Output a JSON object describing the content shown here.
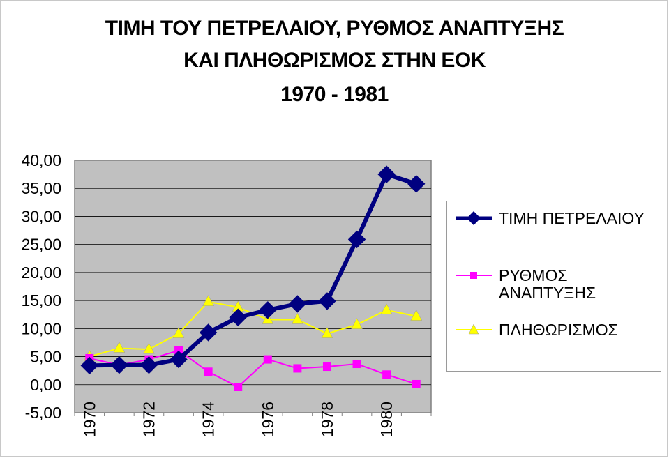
{
  "chart_data": {
    "type": "line",
    "title_lines": [
      "ΤΙΜΗ ΤΟΥ ΠΕΤΡΕΛΑΙΟΥ, ΡΥΘΜΟΣ ΑΝΑΠΤΥΞΗΣ",
      "ΚΑΙ ΠΛΗΘΩΡΙΣΜΟΣ ΣΤΗΝ ΕΟΚ",
      "1970 - 1981"
    ],
    "x": [
      1970,
      1971,
      1972,
      1973,
      1974,
      1975,
      1976,
      1977,
      1978,
      1979,
      1980,
      1981
    ],
    "x_tick_labels": [
      "1970",
      "1972",
      "1974",
      "1976",
      "1978",
      "1980"
    ],
    "x_tick_values": [
      1970,
      1972,
      1974,
      1976,
      1978,
      1980
    ],
    "y_tick_labels": [
      "40,00",
      "35,00",
      "30,00",
      "25,00",
      "20,00",
      "15,00",
      "10,00",
      "5,00",
      "0,00",
      "-5,00"
    ],
    "y_tick_values": [
      40,
      35,
      30,
      25,
      20,
      15,
      10,
      5,
      0,
      -5
    ],
    "ylim": [
      -5,
      40
    ],
    "grid": true,
    "plot_background": "#c0c0c0",
    "legend_position": "right",
    "series": [
      {
        "name": "ΤΙΜΗ ΠΕΤΡΕΛΑΙΟΥ",
        "color": "#000080",
        "marker": "diamond",
        "values": [
          3.4,
          3.5,
          3.5,
          4.5,
          9.3,
          12.0,
          13.3,
          14.4,
          14.9,
          25.9,
          37.5,
          35.8
        ]
      },
      {
        "name": "ΡΥΘΜΟΣ ΑΝΑΠΤΥΞΗΣ",
        "color": "#ff00ff",
        "marker": "square",
        "values": [
          4.7,
          3.5,
          4.5,
          6.1,
          2.3,
          -0.4,
          4.5,
          2.9,
          3.2,
          3.7,
          1.8,
          0.1
        ]
      },
      {
        "name": "ΠΛΗΘΩΡΙΣΜΟΣ",
        "color": "#ffff00",
        "marker": "triangle",
        "values": [
          5.0,
          6.5,
          6.3,
          9.1,
          14.8,
          13.8,
          11.6,
          11.6,
          9.1,
          10.7,
          13.3,
          12.2
        ]
      }
    ]
  }
}
